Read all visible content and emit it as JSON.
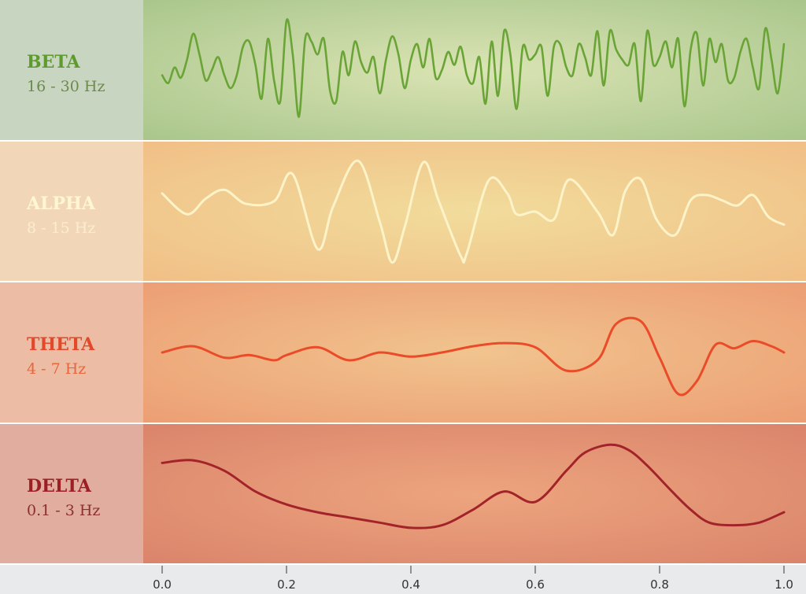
{
  "chart_data": {
    "type": "line",
    "xlim": [
      0.0,
      1.0
    ],
    "x_ticks": [
      "0.0",
      "0.2",
      "0.4",
      "0.6",
      "0.8",
      "1.0"
    ],
    "grid": false,
    "legend": "none",
    "bands": [
      {
        "name": "BETA",
        "range": "16 - 30 Hz",
        "color": "#6aa436",
        "label_color": "#5f9a2e",
        "range_color": "#6b8a4c",
        "panel_edge": "#a6c48a",
        "panel_center": "#dbe4b4",
        "label_bg": "#c8d5c0",
        "series": {
          "x": [
            0.0,
            0.01,
            0.02,
            0.03,
            0.04,
            0.05,
            0.06,
            0.07,
            0.08,
            0.09,
            0.1,
            0.11,
            0.12,
            0.13,
            0.14,
            0.15,
            0.16,
            0.17,
            0.18,
            0.19,
            0.2,
            0.21,
            0.22,
            0.23,
            0.24,
            0.25,
            0.26,
            0.27,
            0.28,
            0.29,
            0.3,
            0.31,
            0.32,
            0.33,
            0.34,
            0.35,
            0.36,
            0.37,
            0.38,
            0.39,
            0.4,
            0.41,
            0.42,
            0.43,
            0.44,
            0.45,
            0.46,
            0.47,
            0.48,
            0.49,
            0.5,
            0.51,
            0.52,
            0.53,
            0.54,
            0.55,
            0.56,
            0.57,
            0.58,
            0.59,
            0.6,
            0.61,
            0.62,
            0.63,
            0.64,
            0.65,
            0.66,
            0.67,
            0.68,
            0.69,
            0.7,
            0.71,
            0.72,
            0.73,
            0.74,
            0.75,
            0.76,
            0.77,
            0.78,
            0.79,
            0.8,
            0.81,
            0.82,
            0.83,
            0.84,
            0.85,
            0.86,
            0.87,
            0.88,
            0.89,
            0.9,
            0.91,
            0.92,
            0.93,
            0.94,
            0.95,
            0.96,
            0.97,
            0.98,
            0.99,
            1.0
          ],
          "y": [
            -0.1,
            -0.25,
            0.05,
            -0.15,
            0.2,
            0.7,
            0.3,
            -0.2,
            0.0,
            0.25,
            -0.1,
            -0.35,
            -0.1,
            0.45,
            0.55,
            0.1,
            -0.55,
            0.6,
            -0.2,
            -0.6,
            0.95,
            0.3,
            -0.9,
            0.6,
            0.55,
            0.3,
            0.6,
            -0.4,
            -0.6,
            0.35,
            -0.1,
            0.55,
            0.15,
            -0.05,
            0.25,
            -0.45,
            0.2,
            0.65,
            0.3,
            -0.35,
            0.2,
            0.5,
            0.05,
            0.6,
            -0.15,
            0.0,
            0.35,
            0.1,
            0.45,
            -0.1,
            -0.25,
            0.25,
            -0.65,
            0.55,
            -0.5,
            0.75,
            0.3,
            -0.75,
            0.45,
            0.2,
            0.3,
            0.45,
            -0.5,
            0.45,
            0.5,
            0.05,
            -0.1,
            0.5,
            0.25,
            -0.1,
            0.75,
            -0.3,
            0.75,
            0.4,
            0.2,
            0.1,
            0.5,
            -0.6,
            0.75,
            0.1,
            0.25,
            0.55,
            0.05,
            0.6,
            -0.7,
            0.4,
            0.7,
            -0.3,
            0.6,
            0.15,
            0.5,
            -0.2,
            -0.15,
            0.35,
            0.6,
            0.05,
            -0.35,
            0.8,
            0.2,
            -0.45,
            0.5
          ]
        }
      },
      {
        "name": "ALPHA",
        "range": "8 - 15 Hz",
        "color": "#fdf3c8",
        "label_color": "#fff6d2",
        "range_color": "#fbeed0",
        "panel_edge": "#f1bd85",
        "panel_center": "#f1dc9c",
        "label_bg": "#f2d6b8",
        "series": {
          "x": [
            0.0,
            0.04,
            0.07,
            0.1,
            0.135,
            0.18,
            0.21,
            0.25,
            0.275,
            0.315,
            0.35,
            0.37,
            0.39,
            0.42,
            0.445,
            0.48,
            0.49,
            0.525,
            0.555,
            0.57,
            0.6,
            0.63,
            0.655,
            0.7,
            0.725,
            0.745,
            0.77,
            0.795,
            0.825,
            0.85,
            0.875,
            0.9,
            0.925,
            0.95,
            0.975,
            1.0
          ],
          "y": [
            0.35,
            -0.05,
            0.25,
            0.42,
            0.15,
            0.2,
            0.72,
            -0.72,
            0.1,
            0.98,
            -0.2,
            -0.98,
            -0.3,
            0.95,
            0.2,
            -0.85,
            -0.8,
            0.6,
            0.35,
            -0.05,
            0.0,
            -0.15,
            0.62,
            0.0,
            -0.45,
            0.4,
            0.62,
            -0.15,
            -0.45,
            0.22,
            0.32,
            0.22,
            0.12,
            0.32,
            -0.1,
            -0.25
          ]
        }
      },
      {
        "name": "THETA",
        "range": "4 - 7 Hz",
        "color": "#ea4c2a",
        "label_color": "#e2482a",
        "range_color": "#e9663c",
        "panel_edge": "#ec9c72",
        "panel_center": "#f1c48e",
        "label_bg": "#ecbca4",
        "series": {
          "x": [
            0.0,
            0.05,
            0.1,
            0.14,
            0.18,
            0.2,
            0.25,
            0.3,
            0.35,
            0.4,
            0.45,
            0.5,
            0.55,
            0.6,
            0.65,
            0.7,
            0.73,
            0.77,
            0.8,
            0.83,
            0.86,
            0.89,
            0.92,
            0.95,
            0.98,
            1.0
          ],
          "y": [
            0.0,
            0.12,
            -0.1,
            -0.05,
            -0.15,
            -0.05,
            0.1,
            -0.15,
            0.0,
            -0.08,
            0.0,
            0.12,
            0.18,
            0.1,
            -0.35,
            -0.15,
            0.55,
            0.6,
            -0.1,
            -0.8,
            -0.55,
            0.15,
            0.08,
            0.22,
            0.12,
            0.0
          ]
        }
      },
      {
        "name": "DELTA",
        "range": "0.1 - 3 Hz",
        "color": "#a3232a",
        "label_color": "#9d1f26",
        "range_color": "#8a3030",
        "panel_edge": "#d9826a",
        "panel_center": "#eda57e",
        "label_bg": "#e0ad9e",
        "series": {
          "x": [
            0.0,
            0.05,
            0.1,
            0.15,
            0.2,
            0.25,
            0.3,
            0.35,
            0.4,
            0.45,
            0.5,
            0.55,
            0.6,
            0.65,
            0.68,
            0.72,
            0.75,
            0.78,
            0.82,
            0.85,
            0.88,
            0.92,
            0.96,
            1.0
          ],
          "y": [
            0.6,
            0.65,
            0.45,
            0.05,
            -0.2,
            -0.35,
            -0.45,
            -0.55,
            -0.65,
            -0.6,
            -0.3,
            0.05,
            -0.15,
            0.45,
            0.8,
            0.95,
            0.85,
            0.55,
            0.05,
            -0.3,
            -0.55,
            -0.6,
            -0.55,
            -0.35
          ]
        }
      }
    ]
  }
}
